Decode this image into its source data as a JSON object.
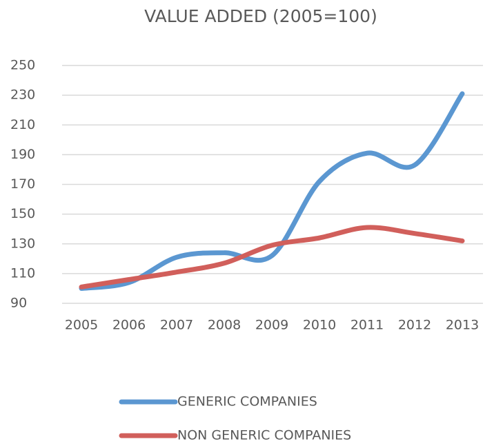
{
  "chart_data": {
    "type": "line",
    "title": "VALUE ADDED (2005=100)",
    "categories": [
      "2005",
      "2006",
      "2007",
      "2008",
      "2009",
      "2010",
      "2011",
      "2012",
      "2013"
    ],
    "series": [
      {
        "name": "GENERIC COMPANIES",
        "color": "#5b97d1",
        "values": [
          100,
          104,
          121,
          124,
          122,
          172,
          191,
          183,
          231
        ]
      },
      {
        "name": "NON GENERIC COMPANIES",
        "color": "#d15f5b",
        "values": [
          101,
          106,
          111,
          117,
          129,
          134,
          141,
          137,
          132
        ]
      }
    ],
    "ylim": [
      90,
      250
    ],
    "yticks": [
      90,
      110,
      130,
      150,
      170,
      190,
      210,
      230,
      250
    ],
    "grid": true,
    "legend": "bottom"
  }
}
